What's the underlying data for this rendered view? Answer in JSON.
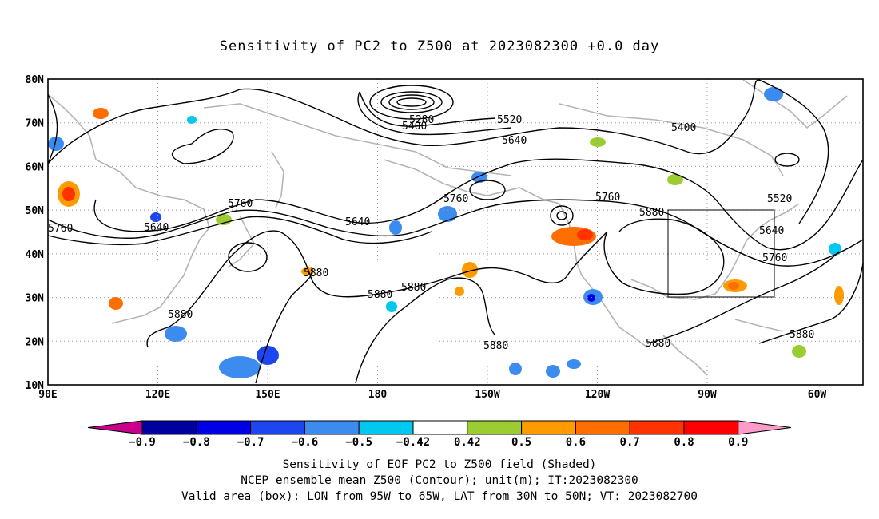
{
  "title": "Sensitivity of PC2 to Z500 at 2023082300 +0.0 day",
  "map": {
    "lat_labels": [
      "80N",
      "70N",
      "60N",
      "50N",
      "40N",
      "30N",
      "20N",
      "10N"
    ],
    "lon_labels": [
      "90E",
      "120E",
      "150E",
      "180",
      "150W",
      "120W",
      "90W",
      "60W"
    ],
    "contour_labels": [
      "5280",
      "5400",
      "5520",
      "5640",
      "5400",
      "5760",
      "5640",
      "5760",
      "5640",
      "5760",
      "5760",
      "5520",
      "5880",
      "5640",
      "5760",
      "5880",
      "5880",
      "5880",
      "5880",
      "5880",
      "5880",
      "5880"
    ],
    "valid_box": {
      "lon_from": "95W",
      "lon_to": "65W",
      "lat_from": "30N",
      "lat_to": "50N"
    },
    "colors": {
      "contour": "#000000",
      "coast": "#b4b4b4",
      "grid": "#999999"
    }
  },
  "colorbar": {
    "labels": [
      "−0.9",
      "−0.8",
      "−0.7",
      "−0.6",
      "−0.5",
      "−0.42",
      "0.42",
      "0.5",
      "0.6",
      "0.7",
      "0.8",
      "0.9"
    ],
    "colors": [
      "#c8008c",
      "#0000a0",
      "#0000e6",
      "#1e46f0",
      "#3c8cf0",
      "#00c8f0",
      "#ffffff",
      "#9bcd32",
      "#ff9b00",
      "#ff6e00",
      "#ff3200",
      "#ff0000",
      "#ff9bc8"
    ]
  },
  "footer": {
    "line1": "Sensitivity of EOF PC2 to Z500 field (Shaded)",
    "line2": "NCEP ensemble mean Z500 (Contour); unit(m); IT:2023082300",
    "line3": "Valid area (box): LON from 95W to 65W, LAT from 30N to 50N; VT: 2023082700"
  }
}
